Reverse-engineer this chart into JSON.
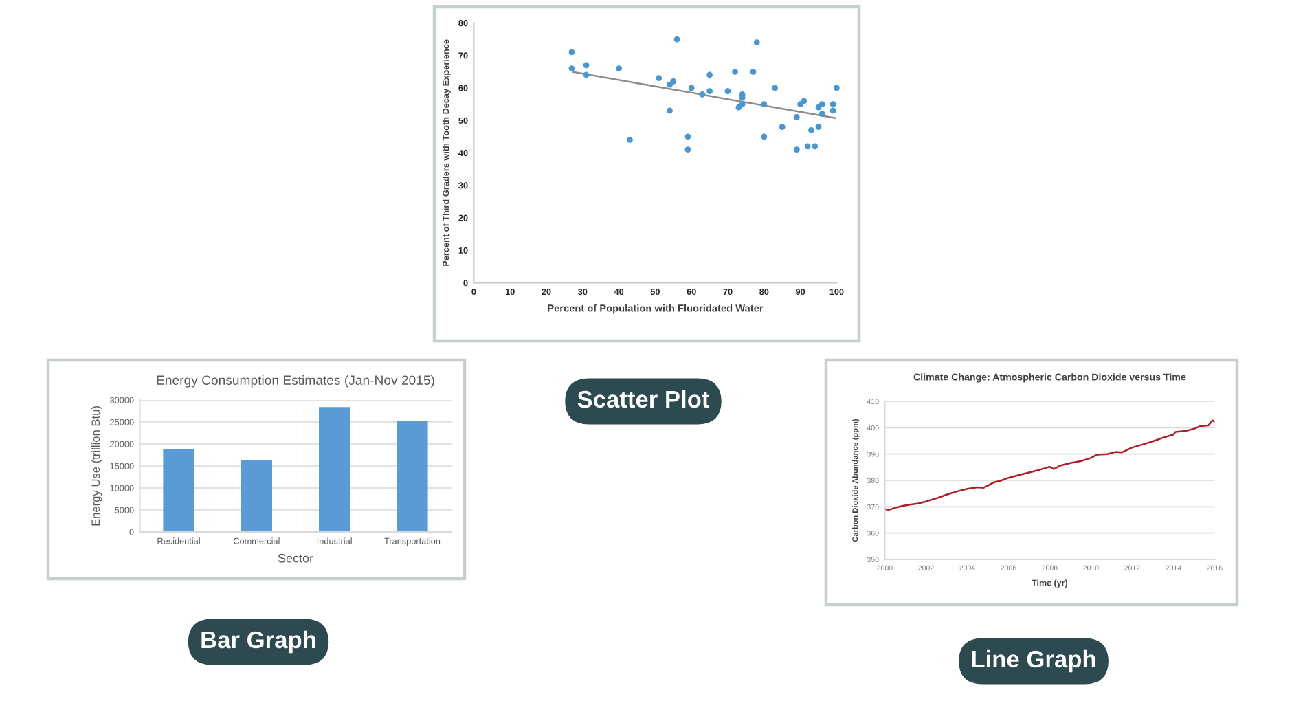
{
  "chart_data": [
    {
      "type": "scatter",
      "xlabel": "Percent of Population with Fluoridated Water",
      "ylabel": "Percent of Third Graders with Tooth Decay Experience",
      "marker": "circle",
      "xlim": [
        0,
        100
      ],
      "ylim": [
        0,
        80
      ],
      "xticks": [
        0,
        10,
        20,
        30,
        40,
        50,
        60,
        70,
        80,
        90,
        100
      ],
      "yticks": [
        0,
        10,
        20,
        30,
        40,
        50,
        60,
        70,
        80
      ],
      "annotations": [
        "Scatter Plot"
      ],
      "series": [
        {
          "type": "scatter",
          "color": "#4a96d0",
          "x": [
            27,
            27,
            31,
            31,
            40,
            43,
            51,
            54,
            54,
            55,
            56,
            59,
            59,
            60,
            63,
            65,
            65,
            70,
            72,
            74,
            74,
            73,
            74,
            77,
            78,
            80,
            80,
            83,
            85,
            89,
            89,
            90,
            91,
            92,
            93,
            94,
            95,
            95,
            96,
            96,
            99,
            99,
            100
          ],
          "values": [
            71,
            66,
            67,
            64,
            66,
            44,
            63,
            53,
            61,
            62,
            75,
            45,
            41,
            60,
            58,
            64,
            59,
            59,
            65,
            58,
            57,
            54,
            55,
            65,
            74,
            45,
            55,
            60,
            48,
            41,
            51,
            55,
            56,
            42,
            47,
            42,
            48,
            54,
            52,
            55,
            55,
            53,
            60
          ]
        },
        {
          "type": "line",
          "marker": "none",
          "color": "#8c8c8c",
          "x": [
            27.4,
            99.7
          ],
          "values": [
            64.9,
            50.7
          ]
        }
      ]
    },
    {
      "type": "bar",
      "title": "Energy Consumption Estimates (Jan-Nov 2015)",
      "xlabel": "Sector",
      "ylabel": "Energy Use (trillion Btu)",
      "categories": [
        "Residential",
        "Commercial",
        "Industrial",
        "Transportation"
      ],
      "values": [
        18900,
        16400,
        28400,
        25300
      ],
      "color": "#5b9bd5",
      "ylim": [
        0,
        30000
      ],
      "yticks": [
        0,
        5000,
        10000,
        15000,
        20000,
        25000,
        30000
      ],
      "grid": "y",
      "annotations": [
        "Bar Graph"
      ]
    },
    {
      "type": "line",
      "title": "Climate Change: Atmospheric Carbon Dioxide versus Time",
      "xlabel": "Time (yr)",
      "ylabel": "Carbon Dioxide Abundance (ppm)",
      "color": "#b01c25",
      "xlim": [
        2000,
        2016
      ],
      "ylim": [
        350,
        410
      ],
      "xticks": [
        2000,
        2002,
        2004,
        2006,
        2008,
        2010,
        2012,
        2014,
        2016
      ],
      "yticks": [
        350,
        360,
        370,
        380,
        390,
        400,
        410
      ],
      "grid": "y",
      "annotations": [
        "Line Graph"
      ],
      "x": [
        2000.0,
        2000.2,
        2000.5,
        2000.8,
        2001.2,
        2001.6,
        2002.0,
        2002.5,
        2003.0,
        2003.5,
        2004.0,
        2004.5,
        2004.8,
        2005.0,
        2005.3,
        2005.6,
        2006.0,
        2006.5,
        2007.0,
        2007.5,
        2008.0,
        2008.2,
        2008.5,
        2009.0,
        2009.5,
        2010.0,
        2010.3,
        2010.8,
        2011.2,
        2011.5,
        2012.0,
        2012.5,
        2013.0,
        2013.5,
        2014.0,
        2014.1,
        2014.6,
        2015.0,
        2015.3,
        2015.7,
        2015.9,
        2016.0
      ],
      "values": [
        369.1,
        368.8,
        369.6,
        370.2,
        370.8,
        371.2,
        372.0,
        373.2,
        374.6,
        375.8,
        376.8,
        377.4,
        377.2,
        378.0,
        379.3,
        379.8,
        381.0,
        382.0,
        383.0,
        384.0,
        385.2,
        384.3,
        385.6,
        386.6,
        387.3,
        388.5,
        389.8,
        390.0,
        390.8,
        390.6,
        392.5,
        393.6,
        394.8,
        396.2,
        397.4,
        398.4,
        398.8,
        399.6,
        400.6,
        400.9,
        402.8,
        402.2
      ]
    }
  ]
}
